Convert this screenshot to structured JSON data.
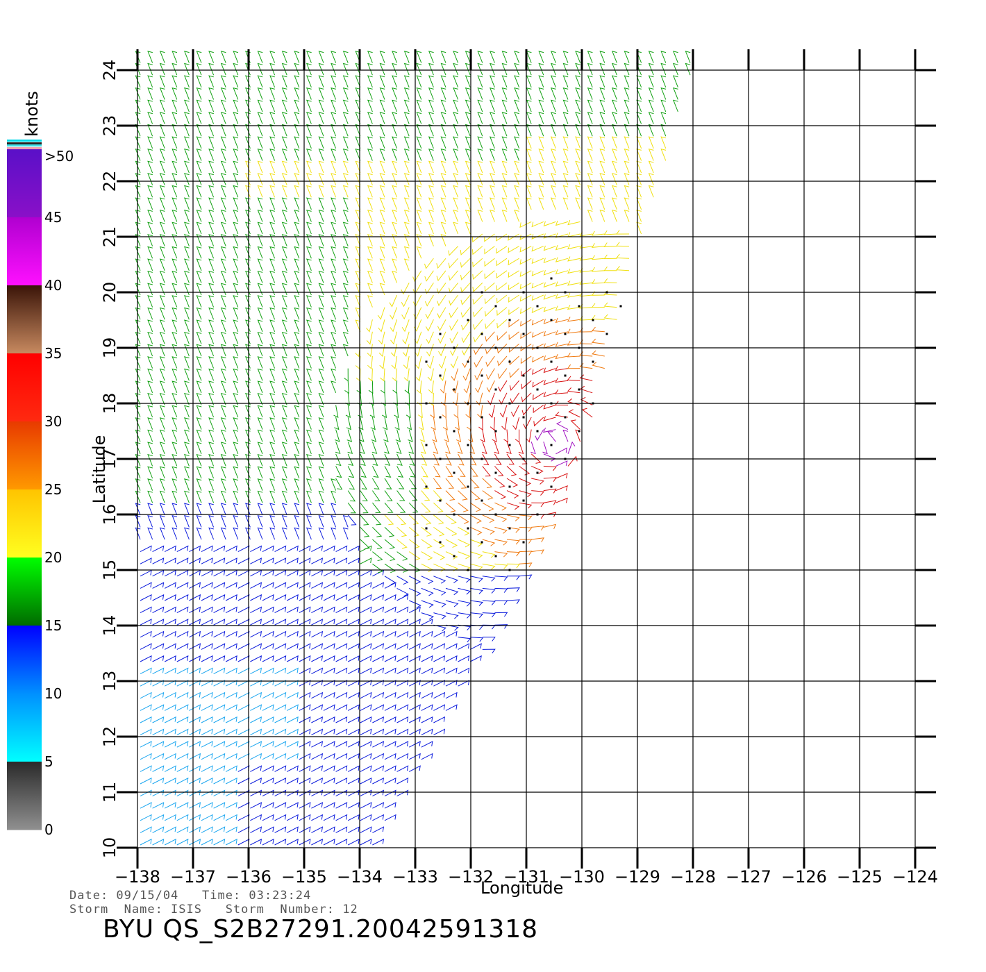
{
  "colorbar": {
    "units": "knots",
    "labels": [
      ">50",
      "45",
      "40",
      "35",
      "30",
      "25",
      "20",
      "15",
      "10",
      "5",
      "0"
    ],
    "bands": [
      {
        "from": 50,
        "to": 45,
        "top": "#5a10c8",
        "bottom": "#8a10c8"
      },
      {
        "from": 45,
        "to": 40,
        "top": "#b000d0",
        "bottom": "#ff10ff"
      },
      {
        "from": 40,
        "to": 35,
        "top": "#3a1408",
        "bottom": "#c88a60"
      },
      {
        "from": 35,
        "to": 30,
        "top": "#ff0000",
        "bottom": "#ff2a10"
      },
      {
        "from": 30,
        "to": 25,
        "top": "#e83a00",
        "bottom": "#ff9a00"
      },
      {
        "from": 25,
        "to": 20,
        "top": "#ffc400",
        "bottom": "#ffff20"
      },
      {
        "from": 20,
        "to": 15,
        "top": "#00ff00",
        "bottom": "#006a00"
      },
      {
        "from": 15,
        "to": 10,
        "top": "#0000ff",
        "bottom": "#0090ff"
      },
      {
        "from": 10,
        "to": 5,
        "top": "#0090ff",
        "bottom": "#00ffff"
      },
      {
        "from": 5,
        "to": 0,
        "top": "#2a2a2a",
        "bottom": "#909090"
      }
    ]
  },
  "map": {
    "lon_range": [
      -138,
      -124
    ],
    "lat_range": [
      10,
      24
    ],
    "lon_ticks": [
      "-138",
      "-137",
      "-136",
      "-135",
      "-134",
      "-133",
      "-132",
      "-131",
      "-130",
      "-129",
      "-128",
      "-127",
      "-126",
      "-125",
      "-124"
    ],
    "lat_ticks": [
      "10",
      "11",
      "12",
      "13",
      "14",
      "15",
      "16",
      "17",
      "18",
      "19",
      "20",
      "21",
      "22",
      "23",
      "24"
    ],
    "xlabel": "Longitude",
    "ylabel": "Latitude",
    "storm_center": {
      "lon": -130.5,
      "lat": 17.3
    },
    "colors": {
      "blue": "#0a1adc",
      "lightblue": "#1aa6f0",
      "green": "#10a010",
      "yellow": "#f0e010",
      "orange": "#f07a10",
      "red": "#d81010",
      "purple": "#a010c0"
    }
  },
  "info": {
    "line1": "Date: 09/15/04   Time: 03:23:24",
    "line2": "Storm  Name: ISIS   Storm  Number: 12",
    "product": "BYU  QS_S2B27291.20042591318"
  }
}
